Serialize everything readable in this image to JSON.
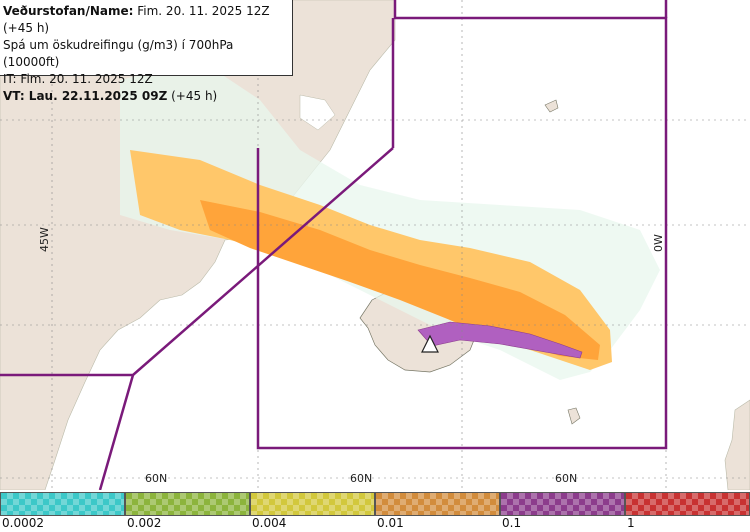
{
  "header": {
    "line1_bold": "Veðurstofan/Name:",
    "line1_rest": " Fim. 20. 11. 2025 12Z (+45 h)",
    "line2": "Spá um öskudreifingu (g/m3) í 700hPa (10000ft)",
    "line3": "IT: Fim. 20. 11. 2025 12Z",
    "line4_bold": "VT: Lau. 22.11.2025 09Z",
    "line4_rest": " (+45 h)"
  },
  "grid_labels": {
    "lon_45w": "45W",
    "lon_0w": "0W",
    "lat_a": "60N",
    "lat_b": "60N",
    "lat_c": "60N"
  },
  "legend": {
    "ticks": [
      "0.0002",
      "0.002",
      "0.004",
      "0.01",
      "0.1",
      "1"
    ],
    "colors": [
      "#3cc8c8",
      "#8cb43c",
      "#d2c83c",
      "#d28c3c",
      "#8c3c8c",
      "#c83232"
    ]
  },
  "colors": {
    "land": "#ece2d8",
    "sea": "#ffffff",
    "fir_line": "#7a1a7a",
    "ash_light": "#ffc76a",
    "ash_medium": "#ffa43a",
    "ash_heavy": "#b060c0"
  }
}
